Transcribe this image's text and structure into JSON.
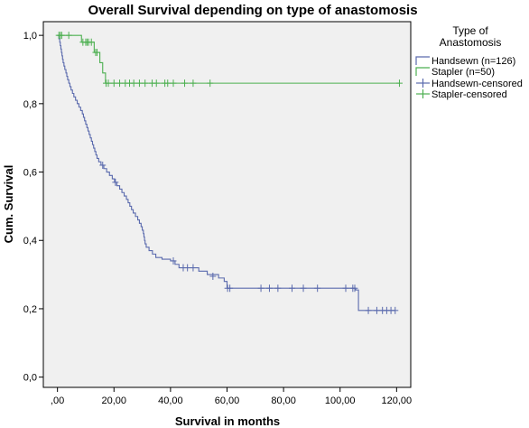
{
  "chart_data": {
    "type": "line",
    "subtype": "kaplan-meier",
    "title": "Overall Survival depending on type of anastomosis",
    "xlabel": "Survival in months",
    "ylabel": "Cum. Survival",
    "xlim": [
      -5,
      125
    ],
    "ylim": [
      -0.03,
      1.04
    ],
    "x_ticks": [
      0,
      20,
      40,
      60,
      80,
      100,
      120
    ],
    "x_tick_labels": [
      ",00",
      "20,00",
      "40,00",
      "60,00",
      "80,00",
      "100,00",
      "120,00"
    ],
    "y_ticks": [
      0,
      0.2,
      0.4,
      0.6,
      0.8,
      1.0
    ],
    "y_tick_labels": [
      "0,0",
      "0,2",
      "0,4",
      "0,6",
      "0,8",
      "1,0"
    ],
    "grid": false,
    "background": "#f0f0f0",
    "legend": {
      "title": "Type of Anastomosis",
      "title_lines": [
        "Type of",
        "Anastomosis"
      ],
      "placement": "right",
      "entries": [
        "Handsewn (n=126)",
        "Stapler (n=50)",
        "Handsewn-censored",
        "Stapler-censored"
      ]
    },
    "series": [
      {
        "name": "Handsewn (n=126)",
        "color": "#5a6aad",
        "steps": [
          [
            0,
            1.0
          ],
          [
            0.5,
            0.99
          ],
          [
            0.8,
            0.98
          ],
          [
            1.0,
            0.97
          ],
          [
            1.2,
            0.96
          ],
          [
            1.4,
            0.95
          ],
          [
            1.6,
            0.94
          ],
          [
            1.8,
            0.93
          ],
          [
            2.0,
            0.92
          ],
          [
            2.3,
            0.91
          ],
          [
            2.6,
            0.9
          ],
          [
            3.0,
            0.89
          ],
          [
            3.3,
            0.88
          ],
          [
            3.6,
            0.87
          ],
          [
            4.0,
            0.86
          ],
          [
            4.4,
            0.85
          ],
          [
            4.8,
            0.84
          ],
          [
            5.3,
            0.83
          ],
          [
            5.8,
            0.82
          ],
          [
            6.4,
            0.81
          ],
          [
            7.0,
            0.8
          ],
          [
            7.6,
            0.79
          ],
          [
            8.2,
            0.78
          ],
          [
            8.8,
            0.77
          ],
          [
            9.2,
            0.76
          ],
          [
            9.6,
            0.75
          ],
          [
            10.0,
            0.74
          ],
          [
            10.4,
            0.73
          ],
          [
            10.8,
            0.72
          ],
          [
            11.2,
            0.71
          ],
          [
            11.6,
            0.7
          ],
          [
            12.0,
            0.69
          ],
          [
            12.4,
            0.68
          ],
          [
            12.8,
            0.67
          ],
          [
            13.2,
            0.66
          ],
          [
            13.6,
            0.65
          ],
          [
            14.0,
            0.64
          ],
          [
            14.6,
            0.63
          ],
          [
            15.4,
            0.62
          ],
          [
            16.4,
            0.61
          ],
          [
            17.4,
            0.6
          ],
          [
            18.4,
            0.59
          ],
          [
            19.4,
            0.58
          ],
          [
            20.2,
            0.57
          ],
          [
            21.0,
            0.56
          ],
          [
            22.0,
            0.55
          ],
          [
            22.8,
            0.54
          ],
          [
            23.6,
            0.53
          ],
          [
            24.4,
            0.52
          ],
          [
            25.0,
            0.51
          ],
          [
            25.6,
            0.5
          ],
          [
            26.2,
            0.49
          ],
          [
            26.8,
            0.48
          ],
          [
            27.6,
            0.47
          ],
          [
            28.4,
            0.46
          ],
          [
            29.0,
            0.45
          ],
          [
            29.6,
            0.44
          ],
          [
            30.0,
            0.43
          ],
          [
            30.4,
            0.42
          ],
          [
            30.6,
            0.41
          ],
          [
            30.8,
            0.4
          ],
          [
            31.0,
            0.39
          ],
          [
            31.4,
            0.38
          ],
          [
            32.4,
            0.37
          ],
          [
            33.6,
            0.36
          ],
          [
            34.8,
            0.35
          ],
          [
            37.0,
            0.345
          ],
          [
            40.0,
            0.34
          ],
          [
            41.6,
            0.33
          ],
          [
            43.0,
            0.32
          ],
          [
            50.0,
            0.31
          ],
          [
            53.0,
            0.3
          ],
          [
            57.0,
            0.29
          ],
          [
            59.0,
            0.28
          ],
          [
            60.0,
            0.26
          ],
          [
            105.5,
            0.255
          ],
          [
            106.5,
            0.195
          ],
          [
            119.5,
            0.195
          ]
        ],
        "censored": [
          [
            16.0,
            0.62
          ],
          [
            20.5,
            0.57
          ],
          [
            41.0,
            0.34
          ],
          [
            44.5,
            0.32
          ],
          [
            46.0,
            0.32
          ],
          [
            48.0,
            0.32
          ],
          [
            55.0,
            0.295
          ],
          [
            60.2,
            0.26
          ],
          [
            61.0,
            0.26
          ],
          [
            72.0,
            0.26
          ],
          [
            75.0,
            0.26
          ],
          [
            78.0,
            0.26
          ],
          [
            83.0,
            0.26
          ],
          [
            87.0,
            0.26
          ],
          [
            92.0,
            0.26
          ],
          [
            102.0,
            0.26
          ],
          [
            104.5,
            0.26
          ],
          [
            105.2,
            0.26
          ],
          [
            110.0,
            0.195
          ],
          [
            113.0,
            0.195
          ],
          [
            115.0,
            0.195
          ],
          [
            116.5,
            0.195
          ],
          [
            118.0,
            0.195
          ],
          [
            119.5,
            0.195
          ]
        ]
      },
      {
        "name": "Stapler (n=50)",
        "color": "#4caf50",
        "steps": [
          [
            0,
            1.0
          ],
          [
            8.5,
            0.98
          ],
          [
            13.0,
            0.95
          ],
          [
            15.0,
            0.92
          ],
          [
            16.0,
            0.89
          ],
          [
            17.0,
            0.86
          ],
          [
            121.0,
            0.86
          ]
        ],
        "censored": [
          [
            0.5,
            1.0
          ],
          [
            1.0,
            1.0
          ],
          [
            1.5,
            1.0
          ],
          [
            4.0,
            1.0
          ],
          [
            9.0,
            0.98
          ],
          [
            10.0,
            0.98
          ],
          [
            10.5,
            0.98
          ],
          [
            11.0,
            0.98
          ],
          [
            12.0,
            0.98
          ],
          [
            13.5,
            0.95
          ],
          [
            14.0,
            0.95
          ],
          [
            17.2,
            0.86
          ],
          [
            18.0,
            0.86
          ],
          [
            20.0,
            0.86
          ],
          [
            22.0,
            0.86
          ],
          [
            24.0,
            0.86
          ],
          [
            25.5,
            0.86
          ],
          [
            27.0,
            0.86
          ],
          [
            29.0,
            0.86
          ],
          [
            31.0,
            0.86
          ],
          [
            33.5,
            0.86
          ],
          [
            35.0,
            0.86
          ],
          [
            38.0,
            0.86
          ],
          [
            39.0,
            0.86
          ],
          [
            41.0,
            0.86
          ],
          [
            45.0,
            0.86
          ],
          [
            48.0,
            0.86
          ],
          [
            54.0,
            0.86
          ],
          [
            121.0,
            0.86
          ]
        ]
      }
    ]
  }
}
